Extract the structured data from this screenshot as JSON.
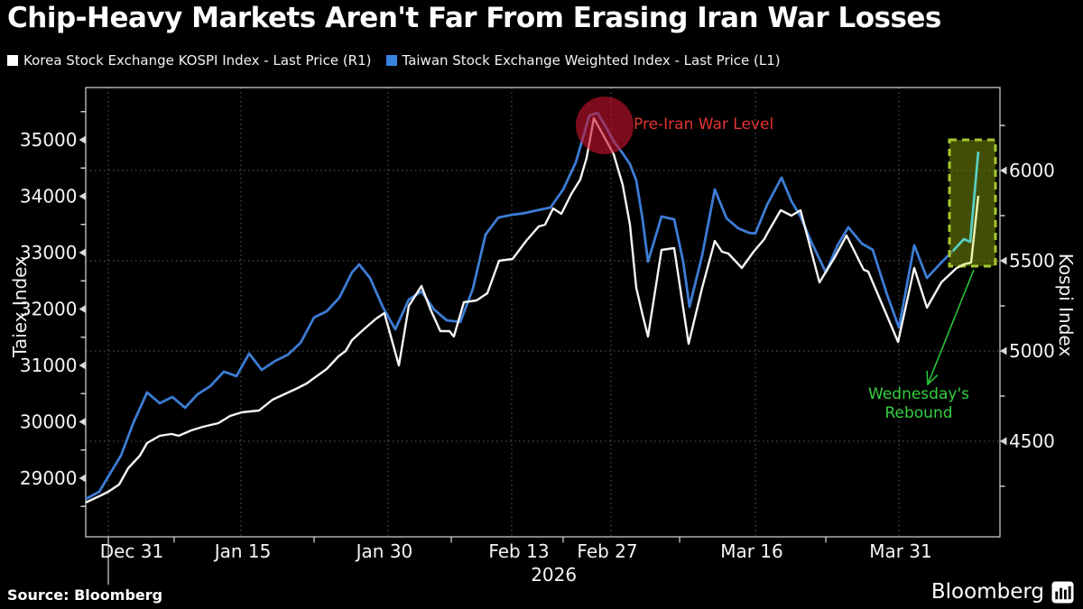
{
  "header": {
    "title": "Chip-Heavy Markets Aren't Far From Erasing Iran War Losses"
  },
  "legend": {
    "items": [
      {
        "label": "Korea Stock Exchange KOSPI Index - Last Price (R1)",
        "swatch_color": "#ffffff"
      },
      {
        "label": "Taiwan Stock Exchange Weighted Index - Last Price (L1)",
        "swatch_color": "#3a82e0"
      }
    ]
  },
  "axes": {
    "left": {
      "title": "Taiex Index",
      "tick_labels": [
        35000,
        34000,
        33000,
        32000,
        31000,
        30000,
        29000
      ]
    },
    "right": {
      "title": "Kospi Index",
      "tick_labels": [
        6000,
        5500,
        5000,
        4500
      ]
    }
  },
  "x_axis": {
    "tick_labels": [
      "Dec 31",
      "Jan 15",
      "Jan 30",
      "Feb 13",
      "Feb 27",
      "Mar 16",
      "Mar 31"
    ],
    "year_label": "2026"
  },
  "annotations": {
    "pre_war_label": "Pre-Iran War Level",
    "rebound_line1": "Wednesday's",
    "rebound_line2": "Rebound"
  },
  "footer": {
    "source": "Source: Bloomberg",
    "brand": "Bloomberg"
  },
  "colors": {
    "taiwan_line": "#3d7cd4",
    "korea_line": "#f5f5f5",
    "red_annotation": "#e63434",
    "green_annotation": "#35cf3f",
    "highlight_box_border": "#a6c92f",
    "grid": "#5f5f54",
    "frame": "#d9d9d9"
  },
  "chart_data": {
    "type": "line",
    "title": "Chip-Heavy Markets Aren't Far From Erasing Iran War Losses",
    "x_ticks": [
      "Dec 31",
      "Jan 15",
      "Jan 30",
      "Feb 13",
      "Feb 27",
      "Mar 16",
      "Mar 31"
    ],
    "year": "2026",
    "grid": "dotted",
    "legend_position": "top-left",
    "left_axis": {
      "label": "Taiex Index",
      "ticks": [
        29000,
        30000,
        31000,
        32000,
        33000,
        34000,
        35000
      ],
      "minor_step": 500
    },
    "right_axis": {
      "label": "Kospi Index",
      "ticks": [
        4500,
        5000,
        5500,
        6000
      ],
      "minor_step": 250
    },
    "annotations": [
      {
        "type": "circle-callout",
        "text": "Pre-Iran War Level",
        "at": "peak of both series (~Feb 24)"
      },
      {
        "type": "box-highlight",
        "text": "Wednesday's Rebound",
        "at": "final rebound segment (~Apr 8)"
      }
    ],
    "series": [
      {
        "name": "Taiwan Stock Exchange Weighted Index - Last Price (L1)",
        "axis": "L1",
        "color": "#3d7cd4",
        "points": [
          [
            0,
            28630
          ],
          [
            0.0148,
            28760
          ],
          [
            0.0247,
            29030
          ],
          [
            0.0385,
            29400
          ],
          [
            0.0523,
            29990
          ],
          [
            0.0671,
            30520
          ],
          [
            0.0809,
            30330
          ],
          [
            0.0948,
            30440
          ],
          [
            0.1086,
            30250
          ],
          [
            0.1224,
            30490
          ],
          [
            0.1362,
            30630
          ],
          [
            0.151,
            30890
          ],
          [
            0.1649,
            30810
          ],
          [
            0.1787,
            31210
          ],
          [
            0.1925,
            30920
          ],
          [
            0.2073,
            31080
          ],
          [
            0.2211,
            31190
          ],
          [
            0.2349,
            31400
          ],
          [
            0.2498,
            31850
          ],
          [
            0.2636,
            31960
          ],
          [
            0.2774,
            32200
          ],
          [
            0.2912,
            32650
          ],
          [
            0.2991,
            32790
          ],
          [
            0.311,
            32550
          ],
          [
            0.3248,
            32040
          ],
          [
            0.3386,
            31640
          ],
          [
            0.3534,
            32170
          ],
          [
            0.3672,
            32310
          ],
          [
            0.381,
            31990
          ],
          [
            0.3948,
            31800
          ],
          [
            0.4097,
            31770
          ],
          [
            0.4235,
            32360
          ],
          [
            0.4373,
            33320
          ],
          [
            0.4511,
            33620
          ],
          [
            0.4659,
            33670
          ],
          [
            0.4798,
            33700
          ],
          [
            0.4936,
            33750
          ],
          [
            0.5084,
            33800
          ],
          [
            0.5222,
            34120
          ],
          [
            0.536,
            34600
          ],
          [
            0.5508,
            35430
          ],
          [
            0.5597,
            35480
          ],
          [
            0.5696,
            35210
          ],
          [
            0.5785,
            34950
          ],
          [
            0.5874,
            34760
          ],
          [
            0.5953,
            34570
          ],
          [
            0.6022,
            34280
          ],
          [
            0.6091,
            33590
          ],
          [
            0.615,
            32840
          ],
          [
            0.6298,
            33640
          ],
          [
            0.6436,
            33590
          ],
          [
            0.6535,
            32840
          ],
          [
            0.6604,
            32040
          ],
          [
            0.6742,
            32950
          ],
          [
            0.6881,
            34120
          ],
          [
            0.7009,
            33610
          ],
          [
            0.7137,
            33430
          ],
          [
            0.7256,
            33350
          ],
          [
            0.7325,
            33340
          ],
          [
            0.7453,
            33850
          ],
          [
            0.7611,
            34330
          ],
          [
            0.772,
            33910
          ],
          [
            0.7818,
            33640
          ],
          [
            0.7937,
            33190
          ],
          [
            0.8095,
            32650
          ],
          [
            0.8223,
            33130
          ],
          [
            0.8342,
            33450
          ],
          [
            0.849,
            33160
          ],
          [
            0.8608,
            33050
          ],
          [
            0.8766,
            32250
          ],
          [
            0.8895,
            31670
          ],
          [
            0.9062,
            33130
          ],
          [
            0.9201,
            32550
          ],
          [
            0.9349,
            32810
          ],
          [
            0.9487,
            33030
          ],
          [
            0.9605,
            33240
          ],
          [
            0.9674,
            33190
          ],
          [
            0.9763,
            34790
          ]
        ]
      },
      {
        "name": "Korea Stock Exchange KOSPI Index - Last Price (R1)",
        "axis": "R1",
        "color": "#f5f5f5",
        "points": [
          [
            0,
            4160
          ],
          [
            0.0168,
            4200
          ],
          [
            0.0247,
            4220
          ],
          [
            0.0365,
            4260
          ],
          [
            0.0464,
            4350
          ],
          [
            0.0592,
            4420
          ],
          [
            0.0671,
            4490
          ],
          [
            0.0809,
            4530
          ],
          [
            0.0938,
            4540
          ],
          [
            0.1017,
            4530
          ],
          [
            0.1155,
            4560
          ],
          [
            0.1283,
            4580
          ],
          [
            0.1451,
            4600
          ],
          [
            0.1579,
            4640
          ],
          [
            0.1708,
            4660
          ],
          [
            0.1895,
            4670
          ],
          [
            0.2043,
            4730
          ],
          [
            0.2172,
            4760
          ],
          [
            0.23,
            4790
          ],
          [
            0.2418,
            4820
          ],
          [
            0.2498,
            4850
          ],
          [
            0.2636,
            4900
          ],
          [
            0.2764,
            4970
          ],
          [
            0.2843,
            5000
          ],
          [
            0.2912,
            5060
          ],
          [
            0.3041,
            5120
          ],
          [
            0.3179,
            5180
          ],
          [
            0.3267,
            5210
          ],
          [
            0.3425,
            4920
          ],
          [
            0.3534,
            5250
          ],
          [
            0.3672,
            5360
          ],
          [
            0.3771,
            5230
          ],
          [
            0.3879,
            5110
          ],
          [
            0.3978,
            5110
          ],
          [
            0.4027,
            5080
          ],
          [
            0.4136,
            5270
          ],
          [
            0.4274,
            5280
          ],
          [
            0.4393,
            5320
          ],
          [
            0.4521,
            5500
          ],
          [
            0.4669,
            5510
          ],
          [
            0.4817,
            5610
          ],
          [
            0.4955,
            5690
          ],
          [
            0.5024,
            5700
          ],
          [
            0.5113,
            5790
          ],
          [
            0.5202,
            5760
          ],
          [
            0.5311,
            5870
          ],
          [
            0.5409,
            5950
          ],
          [
            0.5479,
            6070
          ],
          [
            0.5558,
            6290
          ],
          [
            0.5656,
            6200
          ],
          [
            0.5775,
            6090
          ],
          [
            0.5874,
            5920
          ],
          [
            0.5953,
            5700
          ],
          [
            0.6022,
            5350
          ],
          [
            0.6091,
            5200
          ],
          [
            0.615,
            5080
          ],
          [
            0.6298,
            5560
          ],
          [
            0.6436,
            5570
          ],
          [
            0.6594,
            5040
          ],
          [
            0.6742,
            5350
          ],
          [
            0.6881,
            5610
          ],
          [
            0.696,
            5550
          ],
          [
            0.7029,
            5540
          ],
          [
            0.7177,
            5460
          ],
          [
            0.7305,
            5550
          ],
          [
            0.7423,
            5620
          ],
          [
            0.7453,
            5650
          ],
          [
            0.7601,
            5780
          ],
          [
            0.772,
            5750
          ],
          [
            0.7818,
            5780
          ],
          [
            0.8026,
            5380
          ],
          [
            0.8193,
            5520
          ],
          [
            0.8322,
            5640
          ],
          [
            0.8509,
            5450
          ],
          [
            0.8559,
            5440
          ],
          [
            0.8885,
            5050
          ],
          [
            0.9062,
            5460
          ],
          [
            0.9201,
            5240
          ],
          [
            0.9358,
            5380
          ],
          [
            0.9526,
            5460
          ],
          [
            0.9605,
            5480
          ],
          [
            0.9684,
            5490
          ],
          [
            0.9763,
            5860
          ]
        ]
      }
    ]
  }
}
